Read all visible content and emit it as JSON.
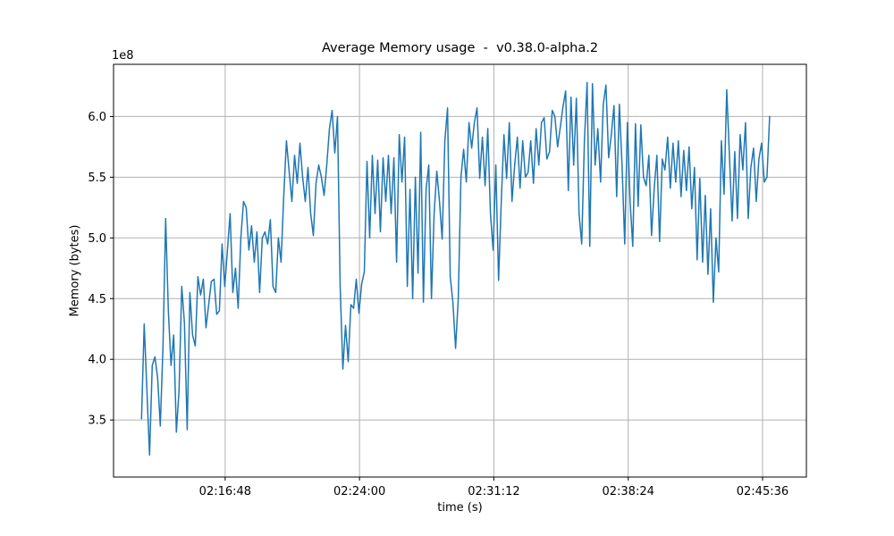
{
  "figure": {
    "background": "#ffffff"
  },
  "chart_data": {
    "type": "line",
    "title": "Average Memory usage  -  v0.38.0-alpha.2",
    "xlabel": "time (s)",
    "ylabel": "Memory (bytes)",
    "y_offset_label": "1e8",
    "grid": true,
    "legend": "none",
    "grid_color": "#b0b0b0",
    "axes_color": "#000000",
    "line_color": "#1f77b4",
    "xlim_seconds": [
      7849,
      10077
    ],
    "ylim_e8": [
      3.03,
      6.43
    ],
    "x_ticks": [
      {
        "seconds": 8208,
        "label": "02:16:48"
      },
      {
        "seconds": 8640,
        "label": "02:24:00"
      },
      {
        "seconds": 9072,
        "label": "02:31:12"
      },
      {
        "seconds": 9504,
        "label": "02:38:24"
      },
      {
        "seconds": 9936,
        "label": "02:45:36"
      }
    ],
    "y_ticks": [
      {
        "value_e8": 3.5,
        "label": "3.5"
      },
      {
        "value_e8": 4.0,
        "label": "4.0"
      },
      {
        "value_e8": 4.5,
        "label": "4.5"
      },
      {
        "value_e8": 5.0,
        "label": "5.0"
      },
      {
        "value_e8": 5.5,
        "label": "5.5"
      },
      {
        "value_e8": 6.0,
        "label": "6.0"
      }
    ],
    "series": [
      {
        "name": "average-memory-usage",
        "start_seconds": 7939,
        "step_seconds": 8.632,
        "values_e8": [
          3.51,
          4.29,
          3.75,
          3.21,
          3.95,
          4.02,
          3.85,
          3.45,
          4.1,
          5.16,
          4.4,
          3.95,
          4.2,
          3.4,
          3.75,
          4.6,
          4.3,
          3.42,
          4.55,
          4.2,
          4.11,
          4.68,
          4.53,
          4.66,
          4.26,
          4.45,
          4.64,
          4.66,
          4.37,
          4.4,
          4.95,
          4.6,
          4.9,
          5.2,
          4.55,
          4.75,
          4.42,
          5.0,
          5.3,
          5.25,
          4.9,
          5.1,
          4.8,
          5.05,
          4.55,
          5.0,
          5.05,
          4.95,
          5.15,
          4.6,
          4.55,
          5.0,
          4.8,
          5.35,
          5.8,
          5.55,
          5.3,
          5.68,
          5.45,
          5.78,
          5.5,
          5.3,
          5.58,
          5.2,
          5.02,
          5.45,
          5.6,
          5.5,
          5.35,
          5.6,
          5.9,
          6.05,
          5.7,
          6.0,
          4.6,
          3.92,
          4.28,
          3.98,
          4.45,
          4.42,
          4.66,
          4.38,
          4.62,
          4.72,
          5.63,
          5.0,
          5.68,
          5.2,
          5.64,
          5.05,
          5.66,
          5.3,
          5.68,
          5.2,
          5.66,
          4.8,
          5.85,
          5.46,
          5.83,
          4.6,
          5.4,
          4.5,
          5.5,
          4.71,
          5.87,
          4.47,
          5.4,
          5.6,
          4.5,
          5.2,
          5.55,
          5.3,
          4.99,
          5.8,
          6.07,
          4.68,
          4.47,
          4.09,
          4.5,
          5.5,
          5.73,
          5.46,
          5.95,
          5.74,
          5.95,
          6.07,
          5.49,
          5.83,
          5.43,
          5.9,
          5.2,
          4.9,
          5.6,
          4.65,
          5.3,
          5.85,
          5.49,
          5.95,
          5.3,
          5.6,
          5.83,
          5.41,
          5.8,
          5.5,
          5.54,
          5.8,
          5.45,
          5.9,
          5.6,
          5.95,
          5.99,
          5.65,
          5.71,
          6.05,
          6.0,
          5.75,
          5.91,
          6.08,
          6.21,
          5.39,
          6.16,
          5.6,
          6.15,
          5.2,
          4.95,
          5.8,
          6.28,
          4.93,
          6.27,
          5.6,
          5.9,
          5.46,
          6.1,
          6.26,
          5.66,
          5.85,
          6.09,
          5.34,
          6.1,
          5.6,
          4.95,
          5.95,
          5.3,
          4.93,
          5.94,
          5.26,
          5.93,
          5.5,
          5.43,
          5.68,
          5.02,
          5.41,
          5.68,
          4.97,
          5.65,
          5.56,
          5.83,
          5.41,
          5.78,
          5.46,
          5.8,
          5.34,
          5.72,
          5.39,
          5.75,
          5.24,
          5.58,
          4.82,
          5.49,
          4.8,
          5.35,
          4.7,
          5.24,
          4.47,
          5.0,
          4.72,
          5.8,
          5.36,
          6.22,
          5.68,
          5.14,
          5.71,
          5.16,
          5.85,
          5.56,
          5.95,
          5.16,
          5.58,
          5.74,
          5.3,
          5.65,
          5.78,
          5.46,
          5.5,
          6.0
        ]
      }
    ]
  }
}
